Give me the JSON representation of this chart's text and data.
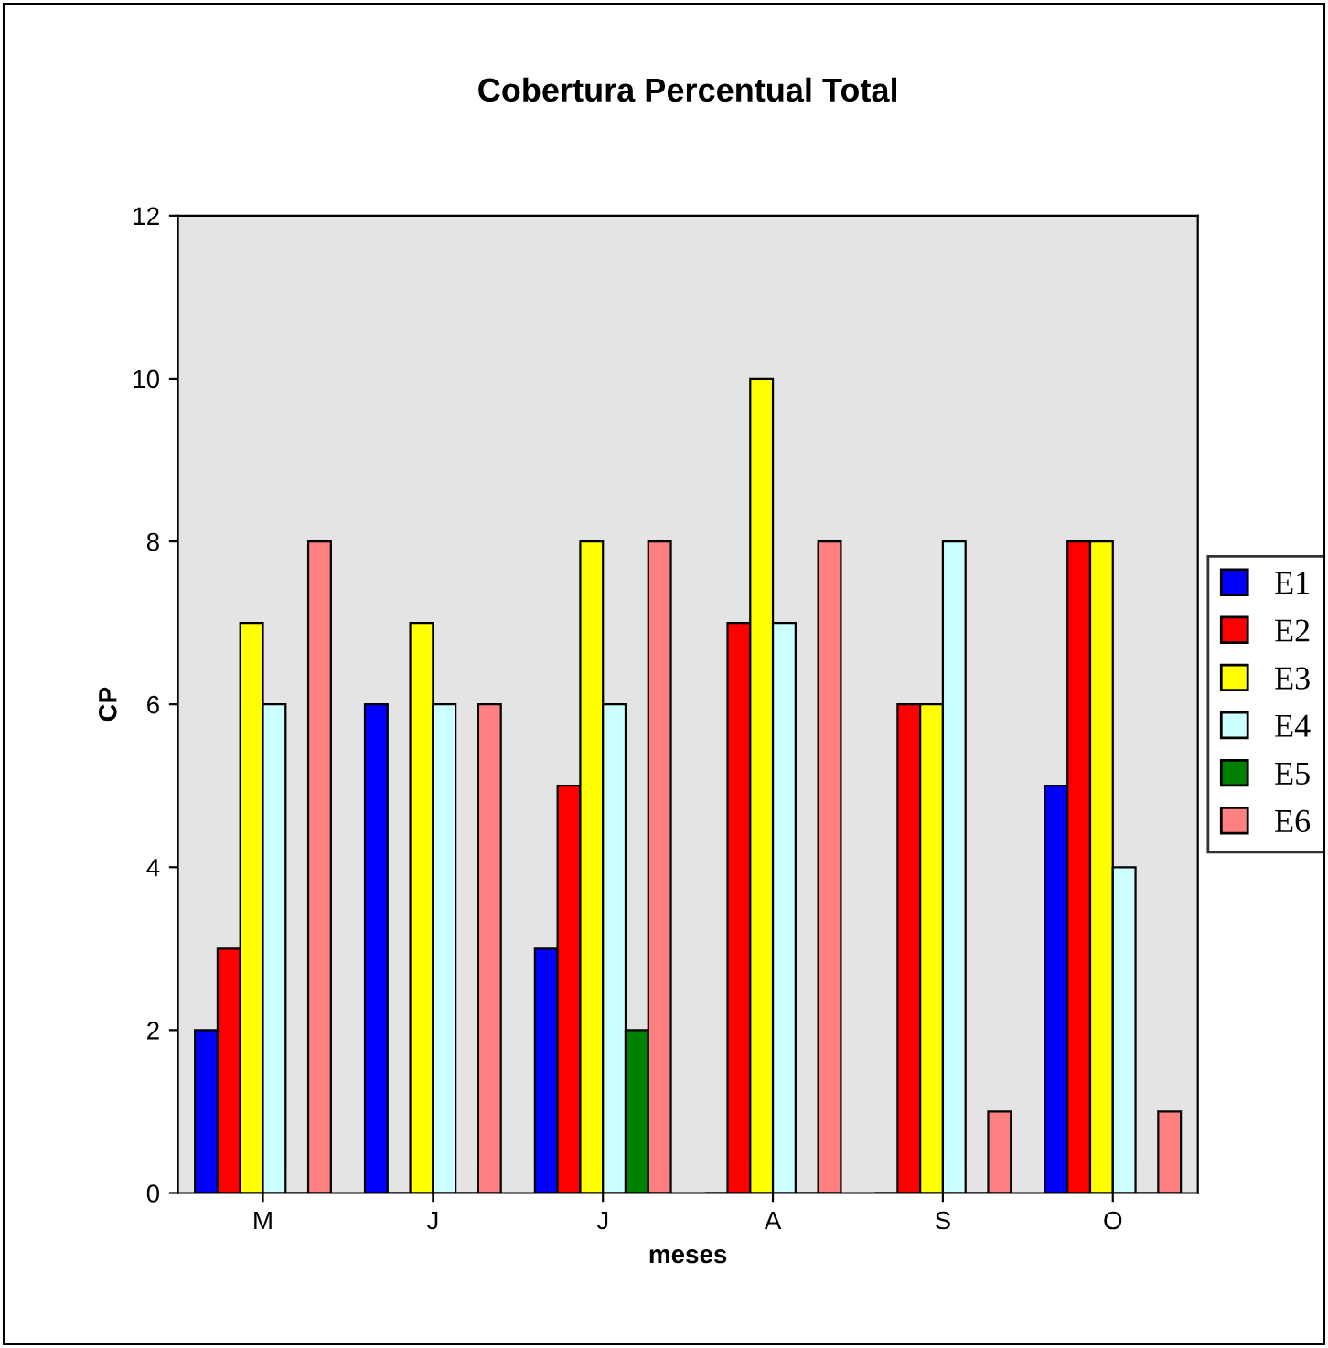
{
  "chart_data": {
    "type": "bar",
    "title": "Cobertura Percentual Total",
    "xlabel": "meses",
    "ylabel": "CP",
    "categories": [
      "M",
      "J",
      "J",
      "A",
      "S",
      "O"
    ],
    "series": [
      {
        "name": "E1",
        "color": "#0000ff",
        "values": [
          2,
          6,
          3,
          0,
          0,
          5
        ]
      },
      {
        "name": "E2",
        "color": "#ff0000",
        "values": [
          3,
          0,
          5,
          7,
          6,
          8
        ]
      },
      {
        "name": "E3",
        "color": "#ffff00",
        "values": [
          7,
          7,
          8,
          10,
          6,
          8
        ]
      },
      {
        "name": "E4",
        "color": "#ccffff",
        "values": [
          6,
          6,
          6,
          7,
          8,
          4
        ]
      },
      {
        "name": "E5",
        "color": "#008000",
        "values": [
          0,
          0,
          2,
          0,
          0,
          0
        ]
      },
      {
        "name": "E6",
        "color": "#ff8080",
        "values": [
          8,
          6,
          8,
          8,
          1,
          1
        ]
      }
    ],
    "ylim": [
      0,
      12
    ],
    "yticks": [
      0,
      2,
      4,
      6,
      8,
      10,
      12
    ],
    "grid": false,
    "legend": "right"
  }
}
